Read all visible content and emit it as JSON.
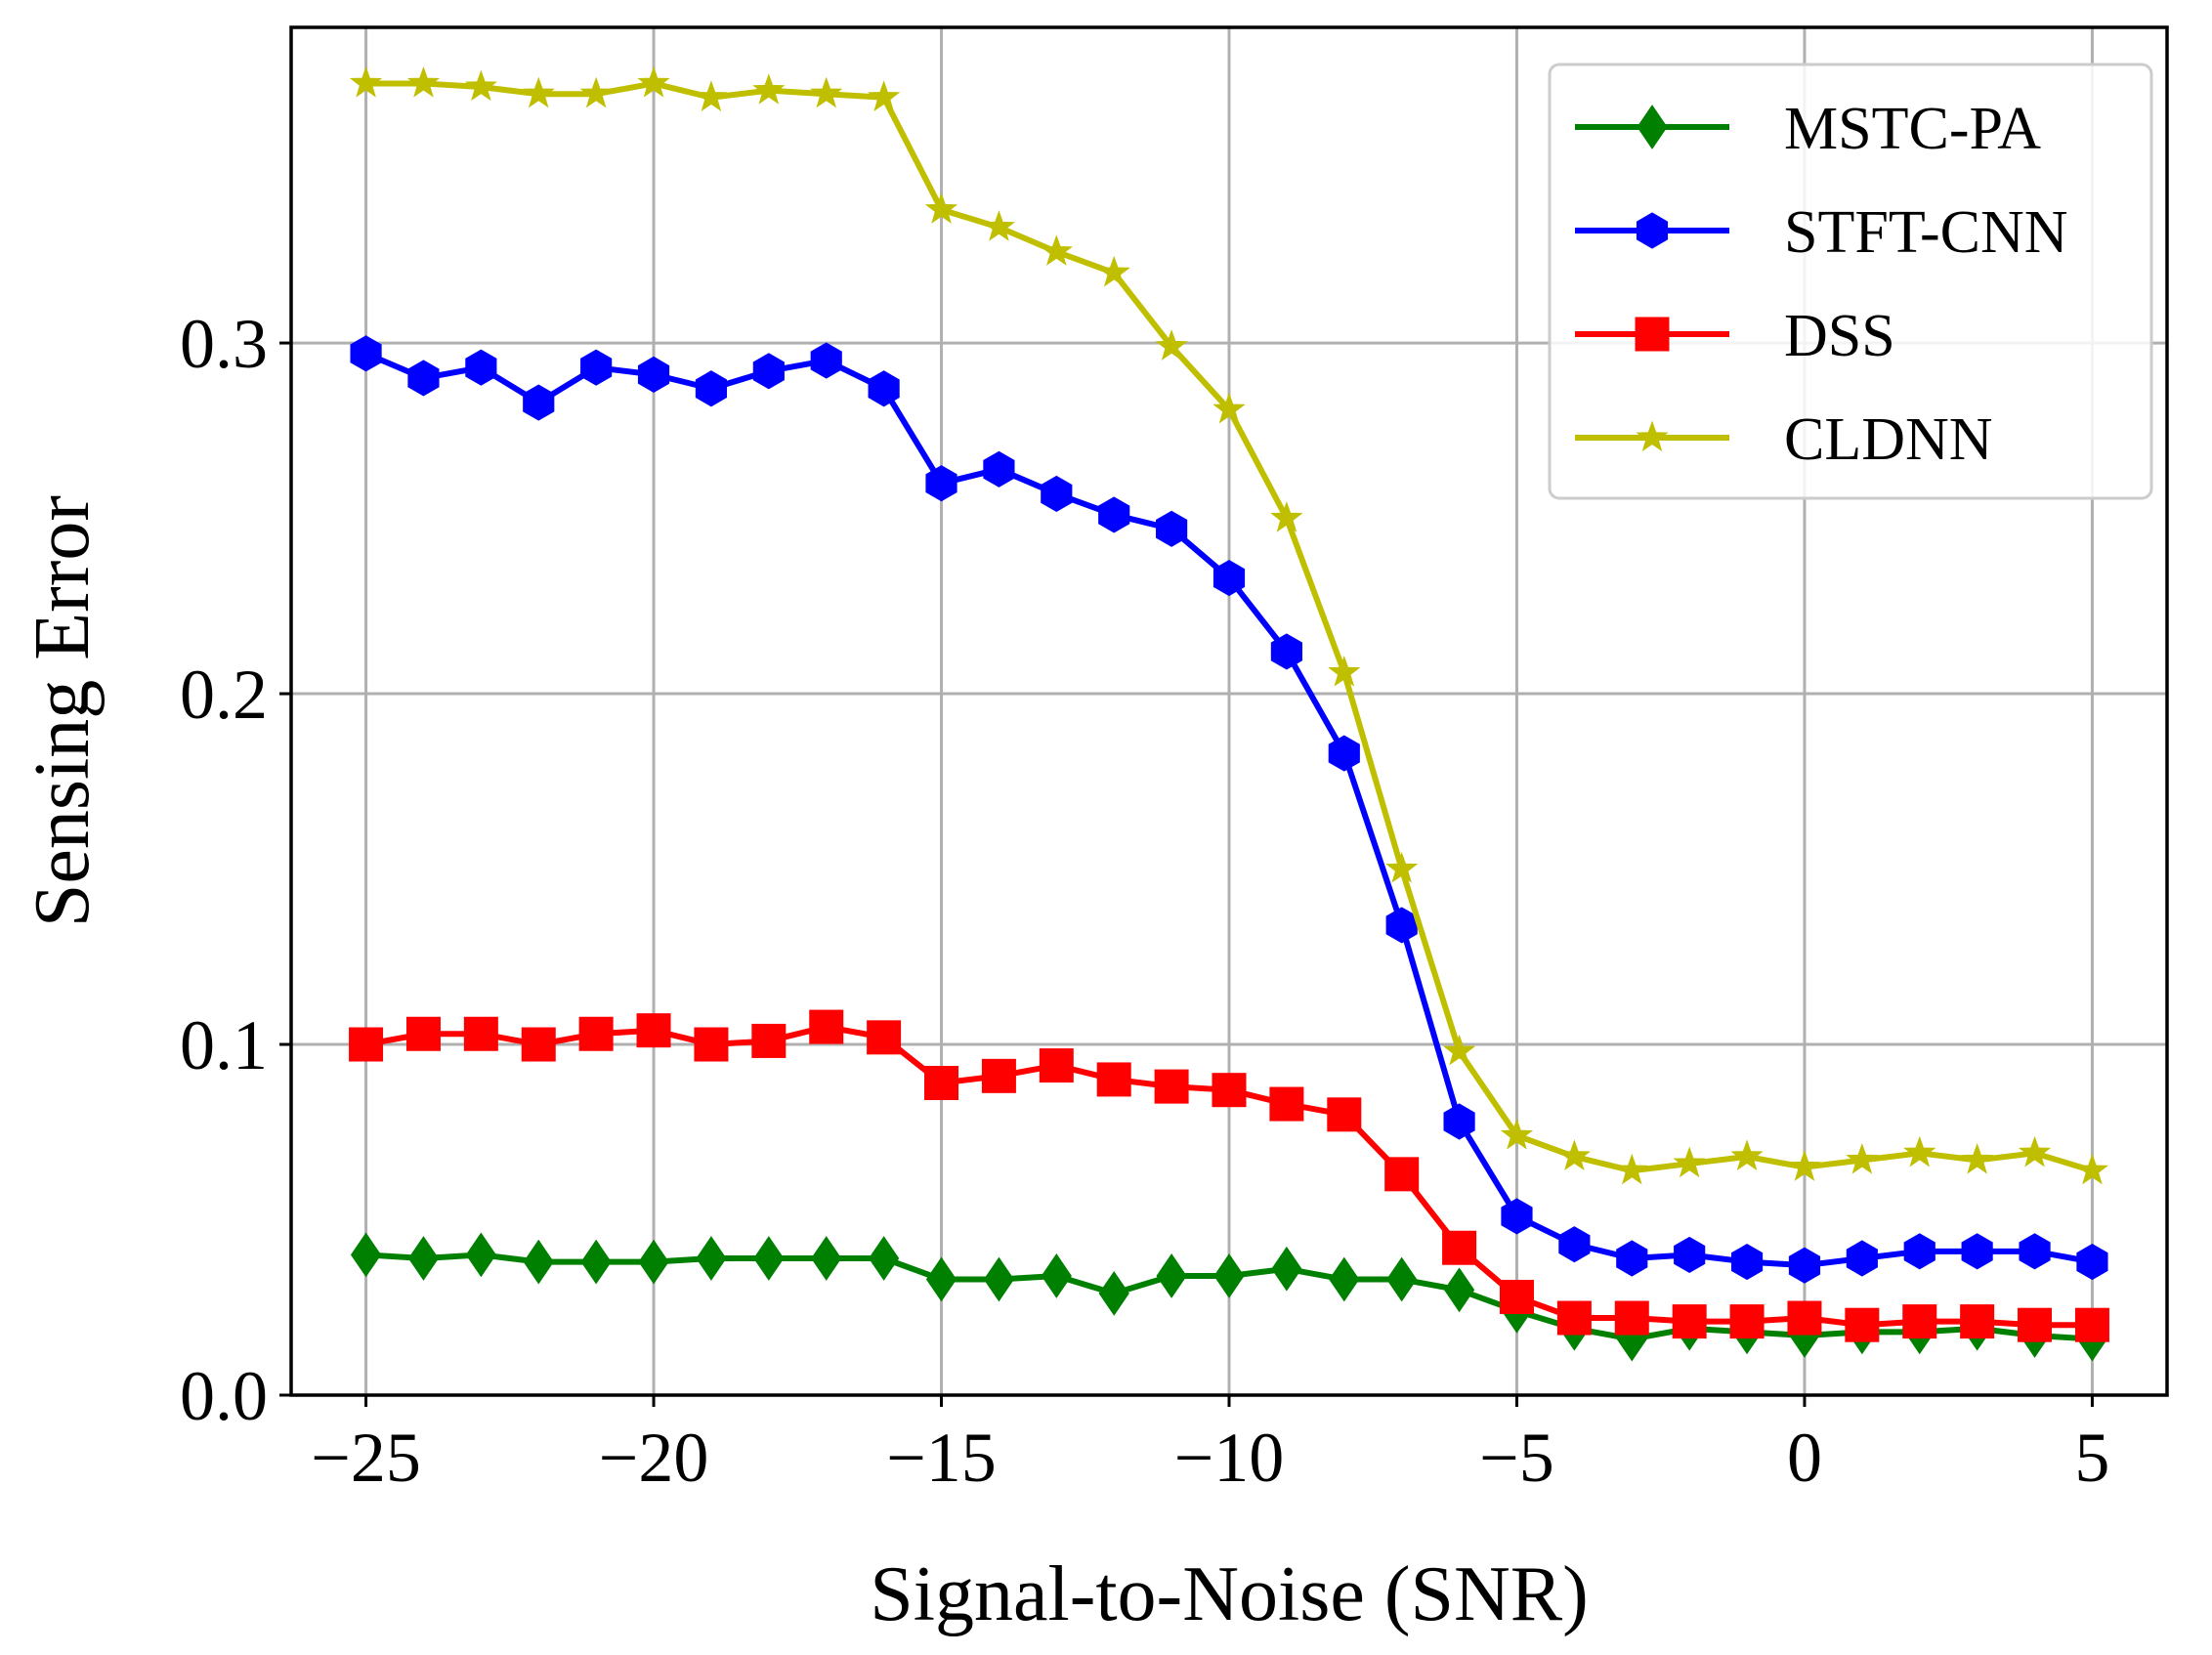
{
  "chart_data": {
    "type": "line",
    "title": "",
    "xlabel": "Signal-to-Noise (SNR)",
    "ylabel": "Sensing Error",
    "xlim": [
      -26.3,
      6.3
    ],
    "ylim": [
      0.0,
      0.39
    ],
    "grid": true,
    "legend_position": "top-right",
    "x": [
      -25,
      -24,
      -23,
      -22,
      -21,
      -20,
      -19,
      -18,
      -17,
      -16,
      -15,
      -14,
      -13,
      -12,
      -11,
      -10,
      -9,
      -8,
      -7,
      -6,
      -5,
      -4,
      -3,
      -2,
      -1,
      0,
      1,
      2,
      3,
      4,
      5
    ],
    "xticks": [
      -25,
      -20,
      -15,
      -10,
      -5,
      0,
      5
    ],
    "xtick_labels": [
      "−25",
      "−20",
      "−15",
      "−10",
      "−5",
      "0",
      "5"
    ],
    "yticks": [
      0.0,
      0.1,
      0.2,
      0.3
    ],
    "ytick_labels": [
      "0.0",
      "0.1",
      "0.2",
      "0.3"
    ],
    "series": [
      {
        "name": "MSTC-PA",
        "color": "#008000",
        "marker": "diamond",
        "values": [
          0.04,
          0.039,
          0.04,
          0.038,
          0.038,
          0.038,
          0.039,
          0.039,
          0.039,
          0.039,
          0.033,
          0.033,
          0.034,
          0.029,
          0.034,
          0.034,
          0.036,
          0.033,
          0.033,
          0.03,
          0.024,
          0.019,
          0.016,
          0.019,
          0.018,
          0.017,
          0.018,
          0.018,
          0.019,
          0.017,
          0.016
        ]
      },
      {
        "name": "STFT-CNN",
        "color": "#0000ff",
        "marker": "hexagon",
        "values": [
          0.297,
          0.29,
          0.293,
          0.283,
          0.293,
          0.291,
          0.287,
          0.292,
          0.295,
          0.287,
          0.26,
          0.264,
          0.257,
          0.251,
          0.247,
          0.233,
          0.212,
          0.183,
          0.134,
          0.078,
          0.051,
          0.043,
          0.039,
          0.04,
          0.038,
          0.037,
          0.039,
          0.041,
          0.041,
          0.041,
          0.038
        ]
      },
      {
        "name": "DSS",
        "color": "#ff0000",
        "marker": "square",
        "values": [
          0.1,
          0.103,
          0.103,
          0.1,
          0.103,
          0.104,
          0.1,
          0.101,
          0.105,
          0.102,
          0.089,
          0.091,
          0.094,
          0.09,
          0.088,
          0.087,
          0.083,
          0.08,
          0.063,
          0.042,
          0.028,
          0.022,
          0.022,
          0.021,
          0.021,
          0.022,
          0.02,
          0.021,
          0.021,
          0.02,
          0.02
        ]
      },
      {
        "name": "CLDNN",
        "color": "#bfbf00",
        "marker": "star",
        "values": [
          0.374,
          0.374,
          0.373,
          0.371,
          0.371,
          0.374,
          0.37,
          0.372,
          0.371,
          0.37,
          0.338,
          0.333,
          0.326,
          0.32,
          0.299,
          0.281,
          0.25,
          0.206,
          0.15,
          0.098,
          0.074,
          0.068,
          0.064,
          0.066,
          0.068,
          0.065,
          0.067,
          0.069,
          0.067,
          0.069,
          0.064
        ]
      }
    ]
  }
}
